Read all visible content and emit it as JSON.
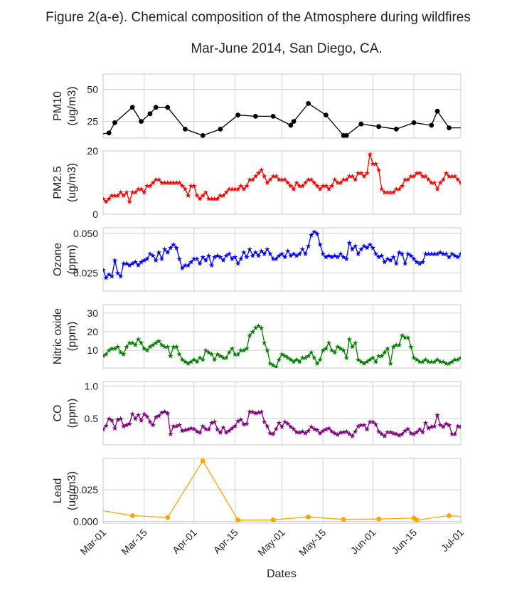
{
  "title_line1": "Figure 2(a-e). Chemical composition of the Atmosphere during wildfires",
  "title_line2": "Mar-June 2014, San Diego, CA.",
  "shared_x": {
    "label": "Dates",
    "range": [
      "2014-03-01",
      "2014-07-01"
    ],
    "ticks": [
      {
        "date": "2014-03-01",
        "label": "Mar-01"
      },
      {
        "date": "2014-03-15",
        "label": "Mar-15"
      },
      {
        "date": "2014-04-01",
        "label": "Apr-01"
      },
      {
        "date": "2014-04-15",
        "label": "Apr-15"
      },
      {
        "date": "2014-05-01",
        "label": "May-01"
      },
      {
        "date": "2014-05-15",
        "label": "May-15"
      },
      {
        "date": "2014-06-01",
        "label": "Jun-01"
      },
      {
        "date": "2014-06-15",
        "label": "Jun-15"
      },
      {
        "date": "2014-07-01",
        "label": "Jul-01"
      }
    ]
  },
  "chart_data": [
    {
      "type": "line",
      "ylabel_line1": "PM10",
      "ylabel_line2": "(ug/m3)",
      "ylim": [
        12,
        62
      ],
      "yticks": [
        25,
        50
      ],
      "ytick_labels": [
        "25",
        "50"
      ],
      "color": "#000000",
      "marker": "dot",
      "grid": true,
      "x": [
        "2014-02-28",
        "2014-03-03",
        "2014-03-05",
        "2014-03-11",
        "2014-03-14",
        "2014-03-17",
        "2014-03-19",
        "2014-03-23",
        "2014-03-29",
        "2014-04-04",
        "2014-04-10",
        "2014-04-16",
        "2014-04-22",
        "2014-04-28",
        "2014-05-04",
        "2014-05-05",
        "2014-05-10",
        "2014-05-16",
        "2014-05-22",
        "2014-05-23",
        "2014-05-28",
        "2014-06-03",
        "2014-06-09",
        "2014-06-15",
        "2014-06-21",
        "2014-06-23",
        "2014-06-27",
        "2014-07-03"
      ],
      "y": [
        15,
        16,
        24,
        36,
        25,
        31,
        36,
        36,
        19,
        14,
        19,
        30,
        29,
        29,
        22,
        25,
        39,
        30,
        14,
        14,
        23,
        21,
        19,
        24,
        22,
        33,
        20,
        20
      ]
    },
    {
      "type": "line",
      "ylabel_line1": "PM2.5",
      "ylabel_line2": "(ug/m3)",
      "ylim": [
        0,
        20
      ],
      "yticks": [
        0,
        20
      ],
      "ytick_labels": [
        "0",
        "20"
      ],
      "color": "#ff0000",
      "marker": "star",
      "grid": true,
      "x_start": "2014-03-01",
      "x_step_days": 1,
      "y": [
        5,
        4,
        5,
        6,
        6,
        6,
        7,
        6,
        7,
        4,
        7,
        7,
        8,
        8,
        7,
        9,
        9,
        10,
        11,
        11,
        10,
        10,
        10,
        10,
        10,
        10,
        10,
        9,
        8,
        6,
        9,
        9,
        6,
        5,
        6,
        7,
        5,
        5,
        5,
        5,
        6,
        6,
        7,
        8,
        8,
        8,
        8,
        9,
        8,
        9,
        11,
        11,
        12,
        13,
        14,
        12,
        10,
        11,
        12,
        12,
        11,
        11,
        11,
        10,
        9,
        8,
        10,
        9,
        9,
        10,
        11,
        11,
        10,
        9,
        8,
        9,
        9,
        8,
        9,
        11,
        10,
        10,
        11,
        11,
        12,
        12,
        11,
        13,
        13,
        12,
        13,
        19,
        16,
        16,
        14,
        8,
        7,
        7,
        7,
        7,
        8,
        8,
        9,
        11,
        11,
        12,
        12,
        13,
        13,
        12,
        12,
        11,
        10,
        10,
        8,
        10,
        11,
        13,
        12,
        12,
        12,
        11,
        10,
        9,
        9,
        9,
        9,
        9,
        9,
        11,
        11,
        11,
        10,
        10,
        10,
        10,
        10,
        10,
        10,
        9,
        9,
        8,
        8,
        8,
        8,
        8,
        9,
        8,
        8,
        8,
        7,
        7,
        8,
        8,
        8,
        8,
        8,
        8,
        8,
        7,
        7,
        8,
        8,
        8,
        8,
        8,
        8,
        8,
        8,
        8,
        8,
        8,
        8,
        8
      ]
    },
    {
      "type": "line",
      "ylabel_line1": "Ozone",
      "ylabel_line2": "(ppm)",
      "ylim": [
        0.0135,
        0.0535
      ],
      "yticks": [
        0.025,
        0.05
      ],
      "ytick_labels": [
        "0.025",
        "0.050"
      ],
      "color": "#0000ff",
      "marker": "star",
      "grid": true,
      "x_start": "2014-03-01",
      "x_step_days": 1,
      "y": [
        0.027,
        0.022,
        0.024,
        0.023,
        0.033,
        0.025,
        0.023,
        0.031,
        0.031,
        0.03,
        0.031,
        0.032,
        0.03,
        0.032,
        0.033,
        0.034,
        0.037,
        0.036,
        0.033,
        0.038,
        0.034,
        0.04,
        0.038,
        0.041,
        0.043,
        0.041,
        0.034,
        0.028,
        0.03,
        0.03,
        0.032,
        0.034,
        0.034,
        0.031,
        0.035,
        0.033,
        0.036,
        0.03,
        0.035,
        0.036,
        0.035,
        0.033,
        0.036,
        0.037,
        0.034,
        0.035,
        0.031,
        0.034,
        0.038,
        0.035,
        0.04,
        0.036,
        0.038,
        0.036,
        0.039,
        0.037,
        0.04,
        0.037,
        0.034,
        0.034,
        0.036,
        0.037,
        0.035,
        0.039,
        0.036,
        0.037,
        0.036,
        0.037,
        0.04,
        0.037,
        0.042,
        0.049,
        0.051,
        0.05,
        0.043,
        0.037,
        0.035,
        0.036,
        0.035,
        0.036,
        0.035,
        0.037,
        0.035,
        0.034,
        0.044,
        0.04,
        0.042,
        0.037,
        0.04,
        0.042,
        0.041,
        0.043,
        0.041,
        0.037,
        0.035,
        0.036,
        0.032,
        0.034,
        0.033,
        0.035,
        0.031,
        0.038,
        0.037,
        0.031,
        0.037,
        0.036,
        0.034,
        0.032,
        0.031,
        0.032,
        0.037,
        0.037,
        0.037,
        0.037,
        0.037,
        0.038,
        0.037,
        0.037,
        0.035,
        0.037,
        0.036,
        0.035,
        0.037,
        0.036,
        0.036,
        0.035,
        0.036,
        0.033,
        0.036,
        0.036,
        0.035,
        0.035,
        0.036,
        0.035,
        0.035,
        0.035,
        0.033,
        0.033,
        0.035,
        0.034,
        0.036,
        0.035,
        0.036,
        0.035,
        0.036,
        0.035,
        0.036,
        0.035,
        0.033,
        0.03,
        0.031,
        0.03,
        0.03,
        0.03,
        0.031,
        0.03,
        0.036,
        0.033,
        0.034,
        0.035,
        0.033,
        0.031,
        0.035,
        0.032,
        0.035,
        0.034,
        0.035,
        0.024,
        0.027,
        0.027,
        0.029,
        0.029,
        0.03,
        0.03,
        0.031,
        0.03,
        0.035
      ]
    },
    {
      "type": "line",
      "ylabel_line1": "Nitric oxide",
      "ylabel_line2": "(ppm)",
      "ylim": [
        0.5,
        34.5
      ],
      "yticks": [
        10,
        20,
        30
      ],
      "ytick_labels": [
        "10",
        "20",
        "30"
      ],
      "color": "#008000",
      "marker": "star",
      "grid": true,
      "x_start": "2014-03-01",
      "x_step_days": 1,
      "y": [
        7,
        8,
        10,
        11,
        11,
        12,
        9,
        8,
        12,
        14,
        14,
        13,
        16,
        14,
        11,
        10,
        12,
        13,
        14,
        15,
        13,
        12,
        12,
        7,
        12,
        12,
        8,
        5,
        4,
        3,
        4,
        5,
        4,
        6,
        5,
        10,
        9,
        8,
        5,
        8,
        7,
        6,
        6,
        9,
        11,
        8,
        8,
        10,
        10,
        11,
        18,
        20,
        22,
        23,
        22,
        14,
        10,
        3,
        2,
        1,
        5,
        8,
        7,
        6,
        5,
        4,
        5,
        4,
        6,
        6,
        7,
        9,
        6,
        3,
        5,
        10,
        11,
        14,
        10,
        9,
        12,
        11,
        10,
        6,
        16,
        12,
        14,
        5,
        4,
        3,
        4,
        5,
        6,
        4,
        7,
        7,
        9,
        11,
        3,
        12,
        13,
        13,
        18,
        17,
        17,
        12,
        6,
        5,
        4,
        4,
        5,
        4,
        4,
        4,
        5,
        4,
        4,
        3,
        3,
        4,
        5,
        5,
        6,
        7,
        8,
        7,
        6,
        5,
        6,
        6,
        7,
        6,
        6,
        5,
        5,
        4,
        4,
        6,
        7,
        6,
        5,
        4,
        4,
        5,
        5,
        4,
        4,
        4,
        4,
        4,
        5,
        5,
        5,
        4,
        4,
        5,
        5,
        6,
        5,
        5,
        4,
        4,
        5,
        5,
        4,
        4,
        5,
        4,
        4,
        5,
        4,
        5,
        4,
        5
      ]
    },
    {
      "type": "line",
      "ylabel_line1": "CO",
      "ylabel_line2": "(ppm)",
      "ylim": [
        0.09,
        1.07
      ],
      "yticks": [
        0.5,
        1.0
      ],
      "ytick_labels": [
        "0.5",
        "1.0"
      ],
      "color": "#800080",
      "marker": "star",
      "grid": true,
      "x_start": "2014-03-01",
      "x_step_days": 1,
      "y": [
        0.33,
        0.39,
        0.5,
        0.47,
        0.35,
        0.48,
        0.5,
        0.38,
        0.4,
        0.42,
        0.57,
        0.5,
        0.55,
        0.47,
        0.57,
        0.53,
        0.45,
        0.4,
        0.52,
        0.54,
        0.59,
        0.61,
        0.58,
        0.26,
        0.38,
        0.38,
        0.4,
        0.31,
        0.32,
        0.33,
        0.35,
        0.34,
        0.3,
        0.28,
        0.38,
        0.34,
        0.33,
        0.43,
        0.45,
        0.33,
        0.28,
        0.36,
        0.28,
        0.31,
        0.35,
        0.38,
        0.46,
        0.48,
        0.41,
        0.42,
        0.61,
        0.6,
        0.58,
        0.59,
        0.6,
        0.45,
        0.38,
        0.27,
        0.26,
        0.34,
        0.43,
        0.37,
        0.45,
        0.42,
        0.37,
        0.34,
        0.29,
        0.28,
        0.3,
        0.27,
        0.31,
        0.37,
        0.34,
        0.32,
        0.27,
        0.31,
        0.33,
        0.35,
        0.3,
        0.27,
        0.25,
        0.28,
        0.29,
        0.3,
        0.26,
        0.23,
        0.3,
        0.38,
        0.4,
        0.4,
        0.33,
        0.45,
        0.45,
        0.41,
        0.3,
        0.26,
        0.23,
        0.29,
        0.29,
        0.27,
        0.26,
        0.24,
        0.26,
        0.31,
        0.34,
        0.27,
        0.26,
        0.29,
        0.33,
        0.29,
        0.43,
        0.35,
        0.37,
        0.38,
        0.55,
        0.4,
        0.37,
        0.42,
        0.4,
        0.26,
        0.26,
        0.38,
        0.37,
        0.45,
        0.62,
        0.63,
        0.55,
        0.4,
        0.36,
        0.37,
        0.32,
        0.3,
        0.26,
        0.24,
        0.22,
        0.22,
        0.21,
        0.23,
        0.25,
        0.24,
        0.27,
        0.25,
        0.23,
        0.23,
        0.24,
        0.25,
        0.27,
        0.26,
        0.24,
        0.24,
        0.23,
        0.24,
        0.24,
        0.23,
        0.22,
        0.25,
        0.24,
        0.23,
        0.24,
        0.25,
        0.26,
        0.25,
        0.26,
        0.25,
        0.26,
        0.25,
        0.24,
        0.25,
        0.24,
        0.2,
        0.2,
        0.22,
        0.18,
        0.18,
        0.17,
        0.17,
        0.18,
        0.17,
        0.18,
        0.2,
        0.18,
        0.17,
        0.23,
        0.23,
        0.27,
        0.27,
        0.27,
        0.25,
        0.24,
        0.23,
        0.22,
        0.22,
        0.23,
        0.21,
        0.22,
        0.2,
        0.18,
        0.19,
        0.17,
        0.17,
        0.19,
        0.17,
        0.18,
        0.18,
        0.18,
        0.19
      ]
    },
    {
      "type": "line",
      "ylabel_line1": "Lead",
      "ylabel_line2": "(ug/m3)",
      "ylim": [
        -0.0015,
        0.05
      ],
      "yticks": [
        0.0,
        0.025
      ],
      "ytick_labels": [
        "0.000",
        "0.025"
      ],
      "color": "#ffa500",
      "marker": "dot",
      "grid": true,
      "x": [
        "2014-02-25",
        "2014-03-11",
        "2014-03-23",
        "2014-04-04",
        "2014-04-16",
        "2014-04-28",
        "2014-05-10",
        "2014-05-22",
        "2014-06-03",
        "2014-06-15",
        "2014-06-16",
        "2014-06-27",
        "2014-07-03"
      ],
      "y": [
        0.01,
        0.0045,
        0.003,
        0.048,
        0.001,
        0.0012,
        0.0035,
        0.0015,
        0.0018,
        0.0025,
        0.001,
        0.0045,
        0.0035
      ]
    }
  ]
}
